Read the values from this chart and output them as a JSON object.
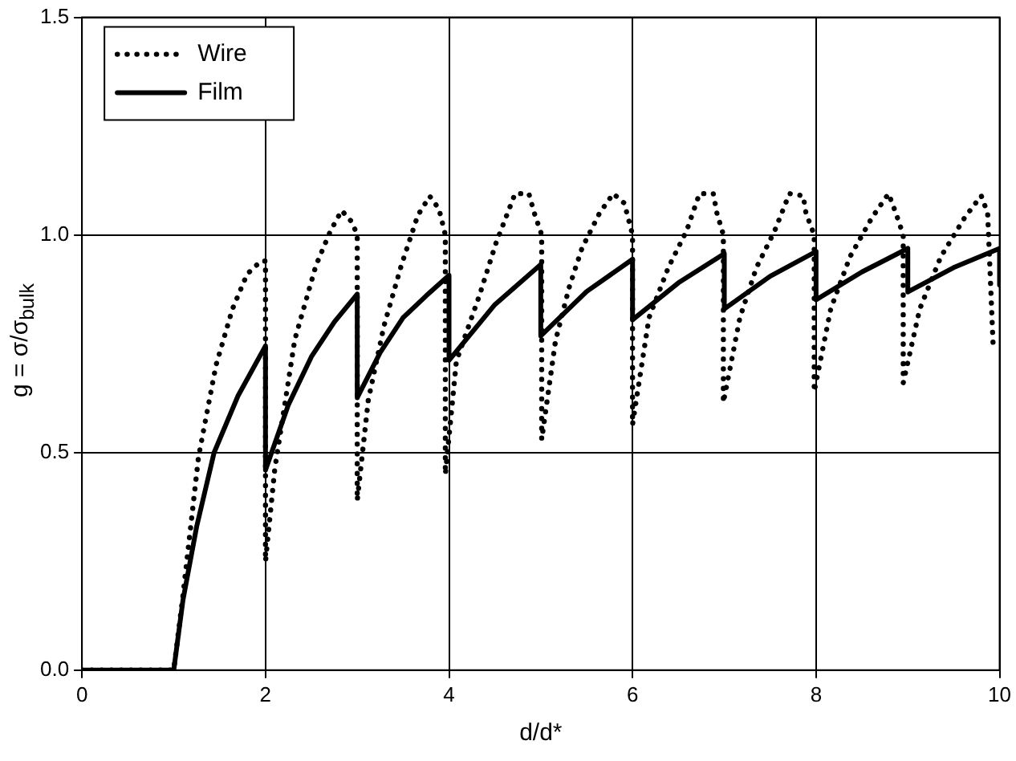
{
  "chart_data": {
    "type": "line",
    "xlabel": "d/d*",
    "ylabel": "g = σ/σ$_{bulk}$",
    "xlim": [
      0,
      10
    ],
    "ylim": [
      0,
      1.5
    ],
    "xticks": [
      0,
      2,
      4,
      6,
      8,
      10
    ],
    "yticks": [
      {
        "value": 0,
        "label": "0.0"
      },
      {
        "value": 0.5,
        "label": "0.5"
      },
      {
        "value": 1,
        "label": "1.0"
      },
      {
        "value": 1.5,
        "label": "1.5"
      }
    ],
    "grid": true,
    "legend": "top left",
    "series": [
      {
        "name": "Wire",
        "color": "#000000",
        "line_style": "dotted",
        "x": [
          0,
          1,
          1.1,
          1.27,
          1.46,
          1.64,
          1.8,
          1.95,
          2,
          2,
          2.1,
          2.32,
          2.55,
          2.71,
          2.83,
          2.94,
          3,
          3,
          3.12,
          3.29,
          3.48,
          3.66,
          3.79,
          3.89,
          3.96,
          3.96,
          4.08,
          4.33,
          4.51,
          4.72,
          4.87,
          4.93,
          5.01,
          5.01,
          5.16,
          5.31,
          5.45,
          5.64,
          5.79,
          5.91,
          6,
          6,
          6.18,
          6.39,
          6.59,
          6.73,
          6.88,
          6.92,
          6.99,
          6.99,
          7.17,
          7.35,
          7.55,
          7.71,
          7.86,
          7.89,
          7.98,
          7.98,
          8.16,
          8.37,
          8.61,
          8.79,
          8.87,
          8.95,
          8.95,
          9.13,
          9.36,
          9.62,
          9.8,
          9.87,
          9.93
        ],
        "values": [
          0,
          0,
          0.17,
          0.49,
          0.7,
          0.83,
          0.91,
          0.94,
          0.94,
          0.25,
          0.46,
          0.76,
          0.93,
          1.01,
          1.056,
          1.03,
          1.0,
          0.39,
          0.62,
          0.79,
          0.93,
          1.045,
          1.089,
          1.06,
          1.0,
          0.45,
          0.71,
          0.86,
          0.98,
          1.095,
          1.095,
          1.05,
          1.0,
          0.53,
          0.756,
          0.88,
          0.97,
          1.05,
          1.095,
          1.073,
          1.0,
          0.564,
          0.81,
          0.925,
          1.01,
          1.095,
          1.095,
          1.05,
          1.0,
          0.615,
          0.81,
          0.925,
          1.01,
          1.095,
          1.09,
          1.05,
          1.0,
          0.64,
          0.83,
          0.95,
          1.04,
          1.095,
          1.05,
          1.0,
          0.66,
          0.83,
          0.95,
          1.04,
          1.09,
          1.05,
          0.745
        ]
      },
      {
        "name": "Film",
        "color": "#000000",
        "line_style": "solid",
        "x": [
          0,
          1,
          1.1,
          1.25,
          1.44,
          1.7,
          2,
          2,
          2.25,
          2.5,
          2.75,
          3,
          3,
          3.25,
          3.5,
          3.75,
          4,
          4,
          4.5,
          5,
          5,
          5.5,
          6,
          6,
          6.5,
          7,
          7,
          7.5,
          8,
          8,
          8.5,
          9,
          9,
          9.5,
          10,
          10
        ],
        "values": [
          0,
          0,
          0.16,
          0.33,
          0.5,
          0.63,
          0.745,
          0.46,
          0.61,
          0.72,
          0.8,
          0.864,
          0.626,
          0.73,
          0.81,
          0.86,
          0.907,
          0.712,
          0.84,
          0.932,
          0.768,
          0.87,
          0.944,
          0.805,
          0.89,
          0.957,
          0.83,
          0.905,
          0.962,
          0.851,
          0.915,
          0.969,
          0.869,
          0.925,
          0.969,
          0.885
        ]
      }
    ]
  }
}
